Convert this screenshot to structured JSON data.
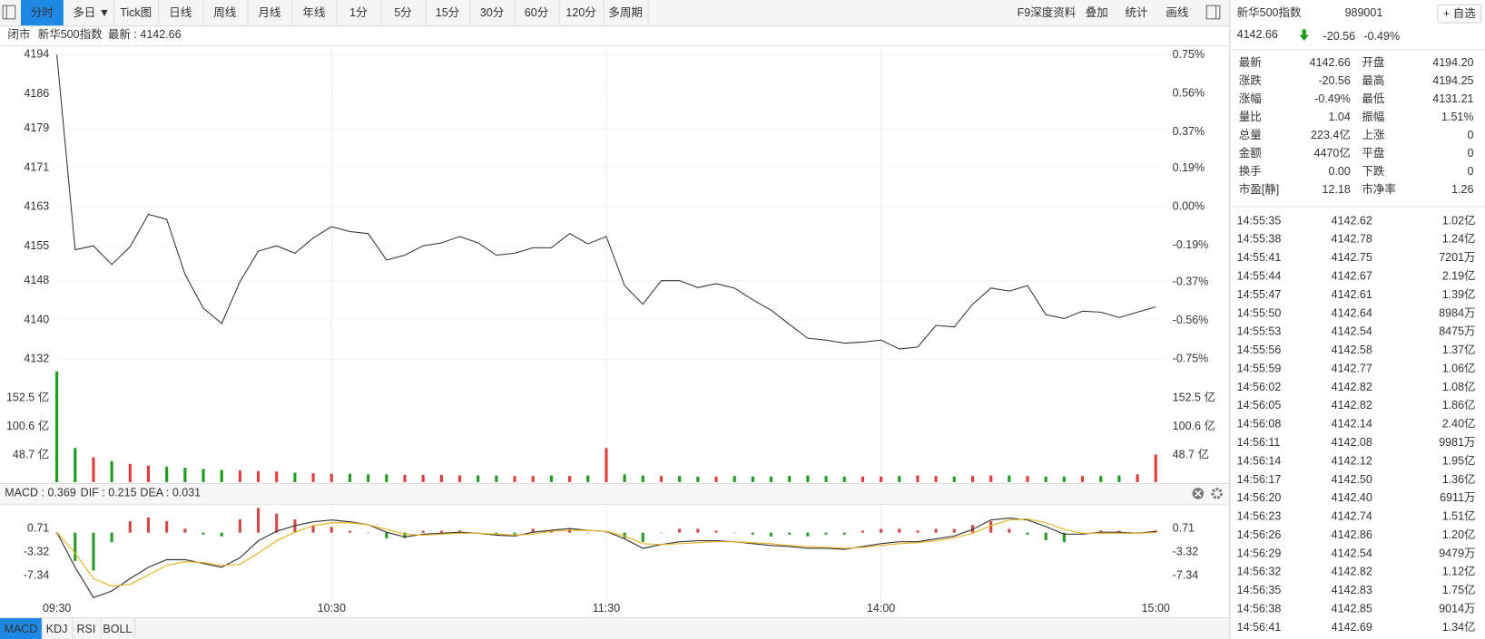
{
  "toolbar": {
    "tabs": [
      "分时",
      "多日 ▼",
      "Tick图",
      "日线",
      "周线",
      "月线",
      "年线",
      "1分",
      "5分",
      "15分",
      "30分",
      "60分",
      "120分",
      "多周期"
    ],
    "active": 0,
    "tools": [
      "F9深度资料",
      "叠加",
      "统计",
      "画线"
    ]
  },
  "status": [
    "闭市",
    "新华500指数",
    "最新 : 4142.66"
  ],
  "chart_data": [
    {
      "type": "line",
      "x": [
        0,
        4,
        8,
        12,
        16,
        20,
        24,
        28,
        32,
        36,
        40,
        44,
        48,
        52,
        56,
        60,
        64,
        68,
        72,
        76,
        80,
        84,
        88,
        92,
        96,
        100,
        104,
        108,
        112,
        116,
        120,
        124,
        128,
        132,
        136,
        140,
        144,
        148,
        152,
        156,
        160,
        164,
        168,
        172,
        176,
        180,
        184,
        188,
        192,
        196,
        200,
        204,
        208,
        212,
        216,
        220,
        224,
        228,
        232,
        236,
        240
      ],
      "xlim": [
        0,
        242
      ],
      "xticks": [
        {
          "value": 0,
          "label": "09:30"
        },
        {
          "value": 60,
          "label": "10:30"
        },
        {
          "value": 120,
          "label": "11:30"
        },
        {
          "value": 180,
          "label": "14:00"
        },
        {
          "value": 240,
          "label": "15:00"
        }
      ],
      "series": [
        {
          "color": "#333333",
          "values": [
            4194.0,
            4154.3,
            4155.1,
            4151.3,
            4154.9,
            4161.5,
            4160.5,
            4149.3,
            4142.4,
            4139.3,
            4147.8,
            4154.0,
            4155.1,
            4153.6,
            4156.7,
            4159.0,
            4158.0,
            4157.6,
            4152.2,
            4153.2,
            4155.1,
            4155.7,
            4157.0,
            4155.7,
            4153.2,
            4153.6,
            4154.7,
            4154.7,
            4157.6,
            4155.5,
            4157.0,
            4147.0,
            4143.2,
            4148.0,
            4148.0,
            4146.6,
            4147.4,
            4146.5,
            4144.1,
            4142.0,
            4139.1,
            4136.3,
            4135.9,
            4135.3,
            4135.5,
            4135.9,
            4134.1,
            4134.5,
            4138.9,
            4138.6,
            4143.2,
            4146.5,
            4145.9,
            4147.0,
            4141.1,
            4140.3,
            4141.8,
            4141.6,
            4140.5,
            4141.6,
            4142.66
          ]
        }
      ],
      "ylim": [
        4130.1,
        4195.9
      ],
      "yticks": [
        4194,
        4186,
        4179,
        4171,
        4163,
        4155,
        4148,
        4140,
        4132
      ],
      "y2lim": [
        -0.797,
        0.797
      ],
      "y2ticks": [
        {
          "value": 0.75,
          "label": "0.75%"
        },
        {
          "value": 0.56,
          "label": "0.56%"
        },
        {
          "value": 0.37,
          "label": "0.37%"
        },
        {
          "value": 0.19,
          "label": "0.19%"
        },
        {
          "value": 0,
          "label": "0.00%"
        },
        {
          "value": -0.19,
          "label": "-0.19%"
        },
        {
          "value": -0.37,
          "label": "-0.37%"
        },
        {
          "value": -0.56,
          "label": "-0.56%"
        },
        {
          "value": -0.75,
          "label": "-0.75%"
        }
      ],
      "grid": true,
      "up_color": "#e03c3c",
      "down_color": "#1f9a1f"
    },
    {
      "type": "bar",
      "x": [
        0,
        4,
        8,
        12,
        16,
        20,
        24,
        28,
        32,
        36,
        40,
        44,
        48,
        52,
        56,
        60,
        64,
        68,
        72,
        76,
        80,
        84,
        88,
        92,
        96,
        100,
        104,
        108,
        112,
        116,
        120,
        124,
        128,
        132,
        136,
        140,
        144,
        148,
        152,
        156,
        160,
        164,
        168,
        172,
        176,
        180,
        184,
        188,
        192,
        196,
        200,
        204,
        208,
        212,
        216,
        220,
        224,
        228,
        232,
        236,
        240
      ],
      "xlim": [
        0,
        242
      ],
      "values": [
        201,
        62,
        45,
        38,
        33,
        30,
        28,
        26,
        24,
        22,
        21,
        20,
        19,
        17,
        16,
        15,
        15,
        14,
        14,
        13,
        13,
        13,
        12,
        12,
        12,
        11,
        11,
        12,
        11,
        12,
        62,
        14,
        12,
        11,
        11,
        10,
        10,
        11,
        10,
        10,
        11,
        12,
        11,
        10,
        10,
        10,
        11,
        12,
        11,
        10,
        11,
        12,
        12,
        11,
        10,
        10,
        11,
        11,
        12,
        14,
        50
      ],
      "ylim": [
        0,
        206
      ],
      "yticks": [
        {
          "value": 152.5,
          "label": "152.5 亿"
        },
        {
          "value": 100.6,
          "label": "100.6 亿"
        },
        {
          "value": 48.7,
          "label": "48.7 亿"
        }
      ],
      "up_color": "#e03c3c",
      "down_color": "#1f9a1f"
    },
    {
      "type": "macd",
      "x": [
        0,
        4,
        8,
        12,
        16,
        20,
        24,
        28,
        32,
        36,
        40,
        44,
        48,
        52,
        56,
        60,
        64,
        68,
        72,
        76,
        80,
        84,
        88,
        92,
        96,
        100,
        104,
        108,
        112,
        116,
        120,
        124,
        128,
        132,
        136,
        140,
        144,
        148,
        152,
        156,
        160,
        164,
        168,
        172,
        176,
        180,
        184,
        188,
        192,
        196,
        200,
        204,
        208,
        212,
        216,
        220,
        224,
        228,
        232,
        236,
        240
      ],
      "xlim": [
        0,
        242
      ],
      "legend": [
        {
          "label": "MACD : 0.369",
          "color": "#d23fc8"
        },
        {
          "label": "DIF : 0.215",
          "color": "#333333"
        },
        {
          "label": "DEA : 0.031",
          "color": "#e0a000"
        }
      ],
      "histogram": [
        0,
        -4.82,
        -6.44,
        -1.62,
        1.94,
        2.58,
        1.94,
        0.66,
        -0.32,
        -0.64,
        2.26,
        4.2,
        3.22,
        2.24,
        1.3,
        0.96,
        0.32,
        0,
        -0.96,
        -0.96,
        0.32,
        0.32,
        0.34,
        0,
        -0.32,
        -0.32,
        0.66,
        0.32,
        0.64,
        0,
        0,
        -0.96,
        -1.6,
        0,
        0.66,
        0.66,
        0.32,
        0,
        -0.32,
        -0.64,
        -0.32,
        -0.64,
        -0.32,
        -0.32,
        0.32,
        0.64,
        0.66,
        0.34,
        0.64,
        0.64,
        1.3,
        1.94,
        0.64,
        -0.32,
        -1.3,
        -1.62,
        -0.32,
        0.34,
        0.34,
        0,
        0.369
      ],
      "series": [
        {
          "color": "#333333",
          "values": [
            0.07,
            -5.89,
            -11.04,
            -9.92,
            -7.82,
            -5.89,
            -4.6,
            -4.6,
            -5.25,
            -5.89,
            -4.28,
            -1.38,
            0.23,
            1.19,
            1.84,
            2.16,
            1.84,
            1.35,
            0.07,
            -0.74,
            -0.26,
            -0.1,
            0.07,
            -0.1,
            -0.42,
            -0.58,
            0.07,
            0.39,
            0.71,
            0.39,
            0.23,
            -1.06,
            -2.67,
            -2.03,
            -1.54,
            -1.38,
            -1.38,
            -1.54,
            -1.87,
            -2.19,
            -2.35,
            -2.67,
            -2.67,
            -2.83,
            -2.35,
            -1.87,
            -1.54,
            -1.54,
            -1.06,
            -0.58,
            0.55,
            2.16,
            2.48,
            2.16,
            1.03,
            -0.26,
            -0.26,
            0.07,
            0.07,
            -0.1,
            0.215
          ]
        },
        {
          "color": "#e6b422",
          "values": [
            0.07,
            -3.48,
            -7.82,
            -9.11,
            -8.79,
            -7.18,
            -5.57,
            -4.93,
            -5.09,
            -5.57,
            -5.41,
            -3.48,
            -1.38,
            0.07,
            1.19,
            1.68,
            1.68,
            1.35,
            0.55,
            -0.26,
            -0.42,
            -0.26,
            -0.1,
            -0.1,
            -0.26,
            -0.42,
            -0.26,
            0.23,
            0.39,
            0.39,
            0.23,
            -0.58,
            -1.87,
            -2.03,
            -1.87,
            -1.71,
            -1.54,
            -1.54,
            -1.71,
            -1.87,
            -2.19,
            -2.35,
            -2.51,
            -2.67,
            -2.51,
            -2.19,
            -1.87,
            -1.71,
            -1.38,
            -0.9,
            -0.1,
            1.19,
            2.16,
            2.32,
            1.68,
            0.55,
            -0.1,
            -0.1,
            -0.1,
            -0.1,
            0.031
          ]
        }
      ],
      "ylim": [
        -11.5,
        4.58
      ],
      "yticks": [
        0.71,
        -3.32,
        -7.34
      ],
      "up_color": "#d04848",
      "down_color": "#2a9a2a"
    }
  ],
  "indicator_tabs": {
    "tabs": [
      "MACD",
      "KDJ",
      "RSI",
      "BOLL"
    ],
    "active": 0
  },
  "quote": {
    "name": "新华500指数",
    "code": "989001",
    "button": "+ 自选",
    "price": "4142.66",
    "change": "-20.56",
    "pct": "-0.49%",
    "tones": {
      "up": "#e03c3c",
      "down": "#1f9a1f",
      "flat": "#333333"
    },
    "stats": [
      [
        "最新",
        "4142.66",
        "开盘",
        "4194.20"
      ],
      [
        "涨跌",
        "-20.56",
        "最高",
        "4194.25"
      ],
      [
        "涨幅",
        "-0.49%",
        "最低",
        "4131.21"
      ],
      [
        "量比",
        "1.04",
        "振幅",
        "1.51%"
      ],
      [
        "总量",
        "223.4亿",
        "上涨",
        "0"
      ],
      [
        "金额",
        "4470亿",
        "平盘",
        "0"
      ],
      [
        "换手",
        "0.00",
        "下跌",
        "0"
      ],
      [
        "市盈[静]",
        "12.18",
        "市净率",
        "1.26"
      ]
    ],
    "stats_tone": [
      [
        "down",
        "up"
      ],
      [
        "down",
        "up"
      ],
      [
        "down",
        "down"
      ],
      [
        "up",
        "flat"
      ],
      [
        "flat",
        "up"
      ],
      [
        "flat",
        "flat"
      ],
      [
        "flat",
        "down"
      ],
      [
        "flat",
        "flat"
      ]
    ]
  },
  "trades": [
    [
      "14:55:35",
      "4142.62",
      "1.02亿"
    ],
    [
      "14:55:38",
      "4142.78",
      "1.24亿"
    ],
    [
      "14:55:41",
      "4142.75",
      "7201万"
    ],
    [
      "14:55:44",
      "4142.67",
      "2.19亿"
    ],
    [
      "14:55:47",
      "4142.61",
      "1.39亿"
    ],
    [
      "14:55:50",
      "4142.64",
      "8984万"
    ],
    [
      "14:55:53",
      "4142.54",
      "8475万"
    ],
    [
      "14:55:56",
      "4142.58",
      "1.37亿"
    ],
    [
      "14:55:59",
      "4142.77",
      "1.06亿"
    ],
    [
      "14:56:02",
      "4142.82",
      "1.08亿"
    ],
    [
      "14:56:05",
      "4142.82",
      "1.86亿"
    ],
    [
      "14:56:08",
      "4142.14",
      "2.40亿"
    ],
    [
      "14:56:11",
      "4142.08",
      "9981万"
    ],
    [
      "14:56:14",
      "4142.12",
      "1.95亿"
    ],
    [
      "14:56:17",
      "4142.50",
      "1.36亿"
    ],
    [
      "14:56:20",
      "4142.40",
      "6911万"
    ],
    [
      "14:56:23",
      "4142.74",
      "1.51亿"
    ],
    [
      "14:56:26",
      "4142.86",
      "1.20亿"
    ],
    [
      "14:56:29",
      "4142.54",
      "9479万"
    ],
    [
      "14:56:32",
      "4142.82",
      "1.12亿"
    ],
    [
      "14:56:35",
      "4142.83",
      "1.75亿"
    ],
    [
      "14:56:38",
      "4142.85",
      "9014万"
    ],
    [
      "14:56:41",
      "4142.69",
      "1.34亿"
    ]
  ]
}
